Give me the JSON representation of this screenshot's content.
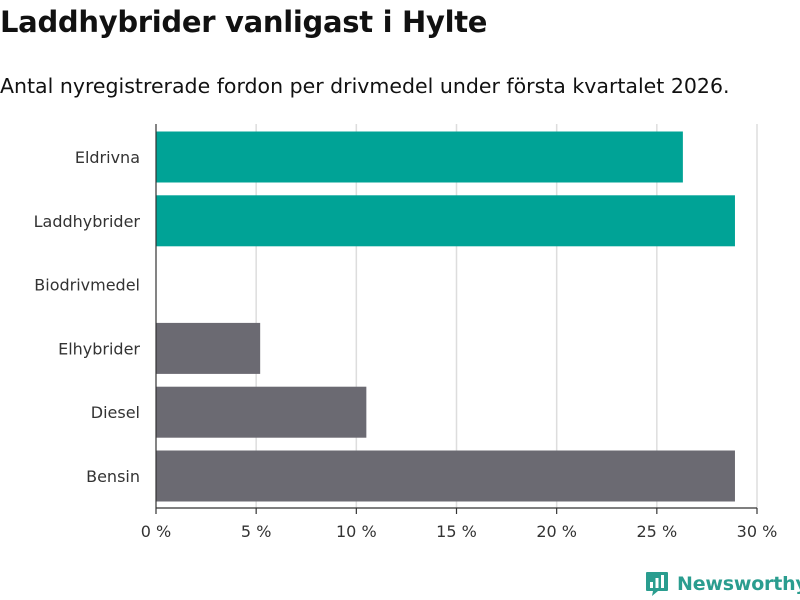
{
  "title": "Laddhybrider vanligast i Hylte",
  "subtitle": "Antal nyregistrerade fordon per drivmedel under första kvartalet 2026.",
  "brand": {
    "name": "Newsworthy",
    "icon": "newsworthy-logo-icon",
    "color": "#2a9d8f"
  },
  "chart_data": {
    "type": "bar",
    "orientation": "horizontal",
    "categories": [
      "Eldrivna",
      "Laddhybrider",
      "Biodrivmedel",
      "Elhybrider",
      "Diesel",
      "Bensin"
    ],
    "values": [
      26.3,
      28.9,
      0,
      5.2,
      10.5,
      28.9
    ],
    "colors": [
      "#00a396",
      "#00a396",
      "#6b6a72",
      "#6b6a72",
      "#6b6a72",
      "#6b6a72"
    ],
    "xlim": [
      0,
      30
    ],
    "ticks": [
      0,
      5,
      10,
      15,
      20,
      25,
      30
    ],
    "tick_labels": [
      "0 %",
      "5 %",
      "10 %",
      "15 %",
      "20 %",
      "25 %",
      "30 %"
    ],
    "grid": true,
    "legend": "none"
  }
}
